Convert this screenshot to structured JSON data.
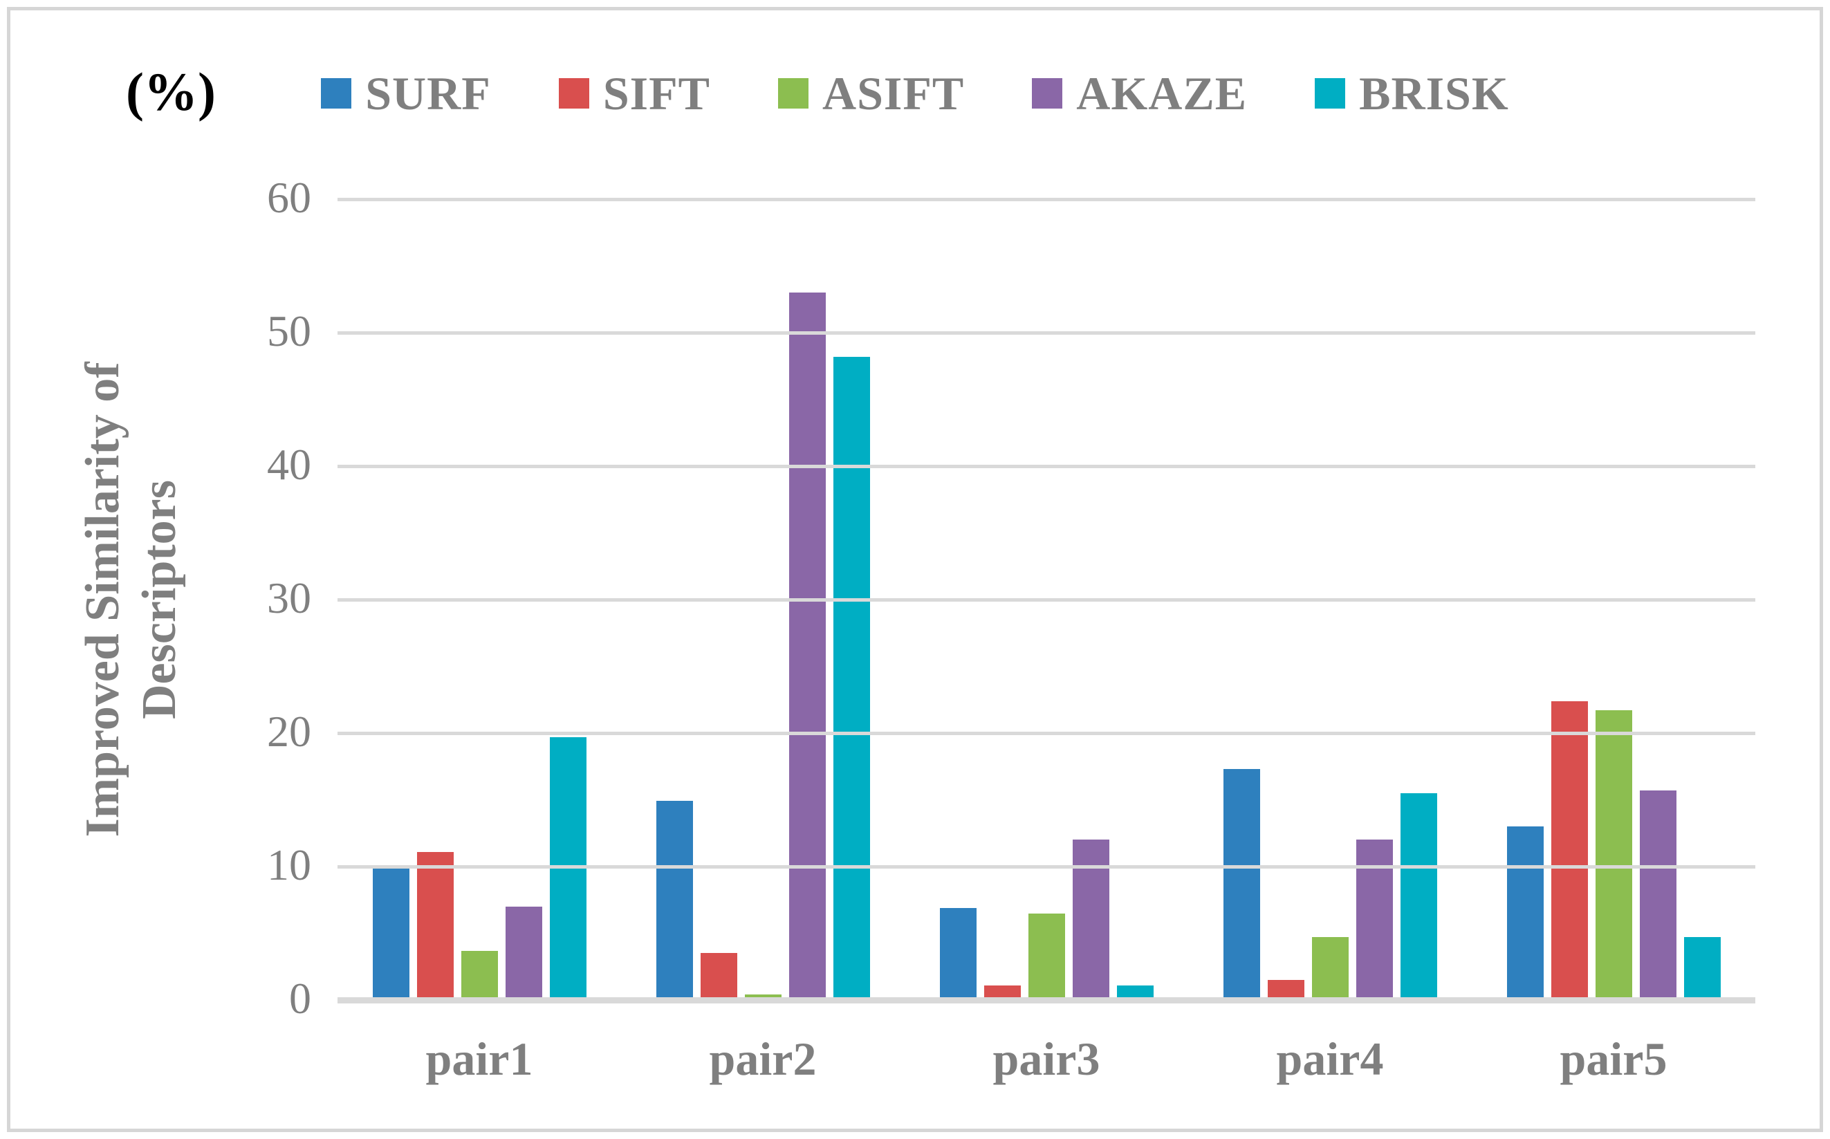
{
  "chart_data": {
    "type": "bar",
    "title": "",
    "unit_label": "(%)",
    "ylabel": "Improved Similarity of Descriptors",
    "ylabel_lines": [
      "Improved Similarity of",
      "Descriptors"
    ],
    "xlabel": "",
    "categories": [
      "pair1",
      "pair2",
      "pair3",
      "pair4",
      "pair5"
    ],
    "series": [
      {
        "name": "SURF",
        "color": "#2e80be",
        "values": [
          10.0,
          14.9,
          6.9,
          17.3,
          13.0
        ]
      },
      {
        "name": "SIFT",
        "color": "#d94f4e",
        "values": [
          11.1,
          3.5,
          1.1,
          1.5,
          22.4
        ]
      },
      {
        "name": "ASIFT",
        "color": "#8cbe50",
        "values": [
          3.7,
          0.4,
          6.5,
          4.7,
          21.7
        ]
      },
      {
        "name": "AKAZE",
        "color": "#8a67a7",
        "values": [
          7.0,
          53.0,
          12.0,
          12.0,
          15.7
        ]
      },
      {
        "name": "BRISK",
        "color": "#00aec3",
        "values": [
          19.7,
          48.2,
          1.1,
          15.5,
          4.7
        ]
      }
    ],
    "y_axis": {
      "min": 0,
      "max": 60,
      "step": 10,
      "tick_labels": [
        "0",
        "10",
        "20",
        "30",
        "40",
        "50",
        "60"
      ]
    },
    "grid": true,
    "legend_position": "top",
    "colors": {
      "text_gray": "#7f7f7f",
      "gridline": "#d9d9d9",
      "border": "#d6d6d6",
      "unit_label_color": "#000000"
    }
  }
}
